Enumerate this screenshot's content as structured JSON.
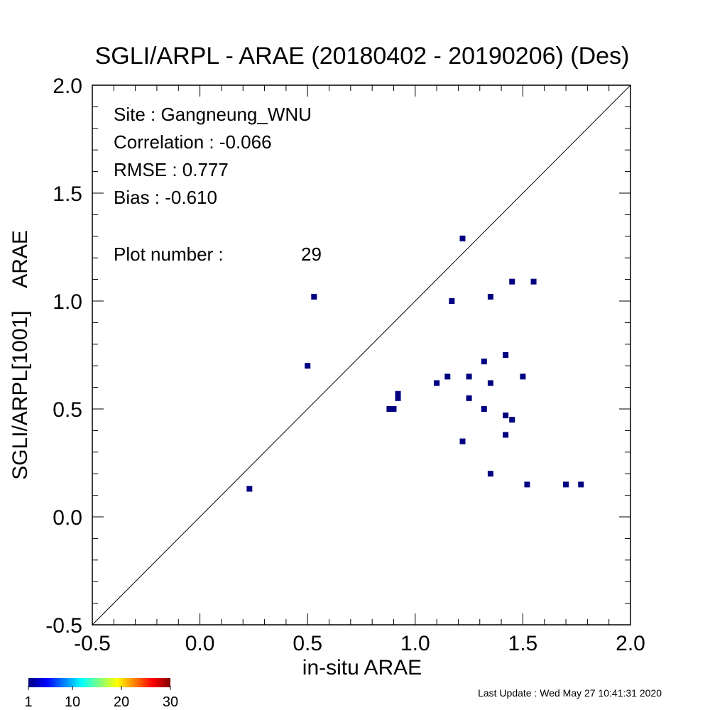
{
  "chart_data": {
    "type": "scatter",
    "title": "SGLI/ARPL - ARAE (20180402 - 20190206) (Des)",
    "xlabel": "in-situ ARAE",
    "ylabel": "SGLI/ARPL[1001]    ARAE",
    "xlim": [
      -0.5,
      2.0
    ],
    "ylim": [
      -0.5,
      2.0
    ],
    "x_ticks": [
      "-0.5",
      "0.0",
      "0.5",
      "1.0",
      "1.5",
      "2.0"
    ],
    "y_ticks": [
      "-0.5",
      "0.0",
      "0.5",
      "1.0",
      "1.5",
      "2.0"
    ],
    "grid": false,
    "one_to_one_line": true,
    "marker_color": "#000080",
    "stats": {
      "site_label": "Site : Gangneung_WNU",
      "correlation_label": "Correlation :   -0.066",
      "rmse_label": "RMSE :    0.777",
      "bias_label": "Bias :   -0.610",
      "plot_number_label": "Plot number :",
      "plot_number_value": "29"
    },
    "colorbar": {
      "ticks": [
        "1",
        "10",
        "20",
        "30"
      ],
      "colors": [
        "#00007f",
        "#0000ff",
        "#007fff",
        "#00ffff",
        "#7fff7f",
        "#ffff00",
        "#ff7f00",
        "#ff0000",
        "#7f0000"
      ]
    },
    "points": [
      {
        "x": 0.23,
        "y": 0.13
      },
      {
        "x": 0.5,
        "y": 0.7
      },
      {
        "x": 0.53,
        "y": 1.02
      },
      {
        "x": 0.88,
        "y": 0.5
      },
      {
        "x": 0.9,
        "y": 0.5
      },
      {
        "x": 0.92,
        "y": 0.55
      },
      {
        "x": 0.92,
        "y": 0.57
      },
      {
        "x": 1.1,
        "y": 0.62
      },
      {
        "x": 1.15,
        "y": 0.65
      },
      {
        "x": 1.17,
        "y": 1.0
      },
      {
        "x": 1.22,
        "y": 1.29
      },
      {
        "x": 1.22,
        "y": 0.35
      },
      {
        "x": 1.25,
        "y": 0.65
      },
      {
        "x": 1.25,
        "y": 0.55
      },
      {
        "x": 1.32,
        "y": 0.72
      },
      {
        "x": 1.32,
        "y": 0.5
      },
      {
        "x": 1.35,
        "y": 1.02
      },
      {
        "x": 1.35,
        "y": 0.62
      },
      {
        "x": 1.35,
        "y": 0.2
      },
      {
        "x": 1.42,
        "y": 0.75
      },
      {
        "x": 1.42,
        "y": 0.47
      },
      {
        "x": 1.42,
        "y": 0.38
      },
      {
        "x": 1.45,
        "y": 1.09
      },
      {
        "x": 1.45,
        "y": 0.45
      },
      {
        "x": 1.5,
        "y": 0.65
      },
      {
        "x": 1.52,
        "y": 0.15
      },
      {
        "x": 1.55,
        "y": 1.09
      },
      {
        "x": 1.7,
        "y": 0.15
      },
      {
        "x": 1.77,
        "y": 0.15
      }
    ]
  },
  "footer": {
    "last_update": "Last Update : Wed May 27 10:41:31 2020"
  }
}
